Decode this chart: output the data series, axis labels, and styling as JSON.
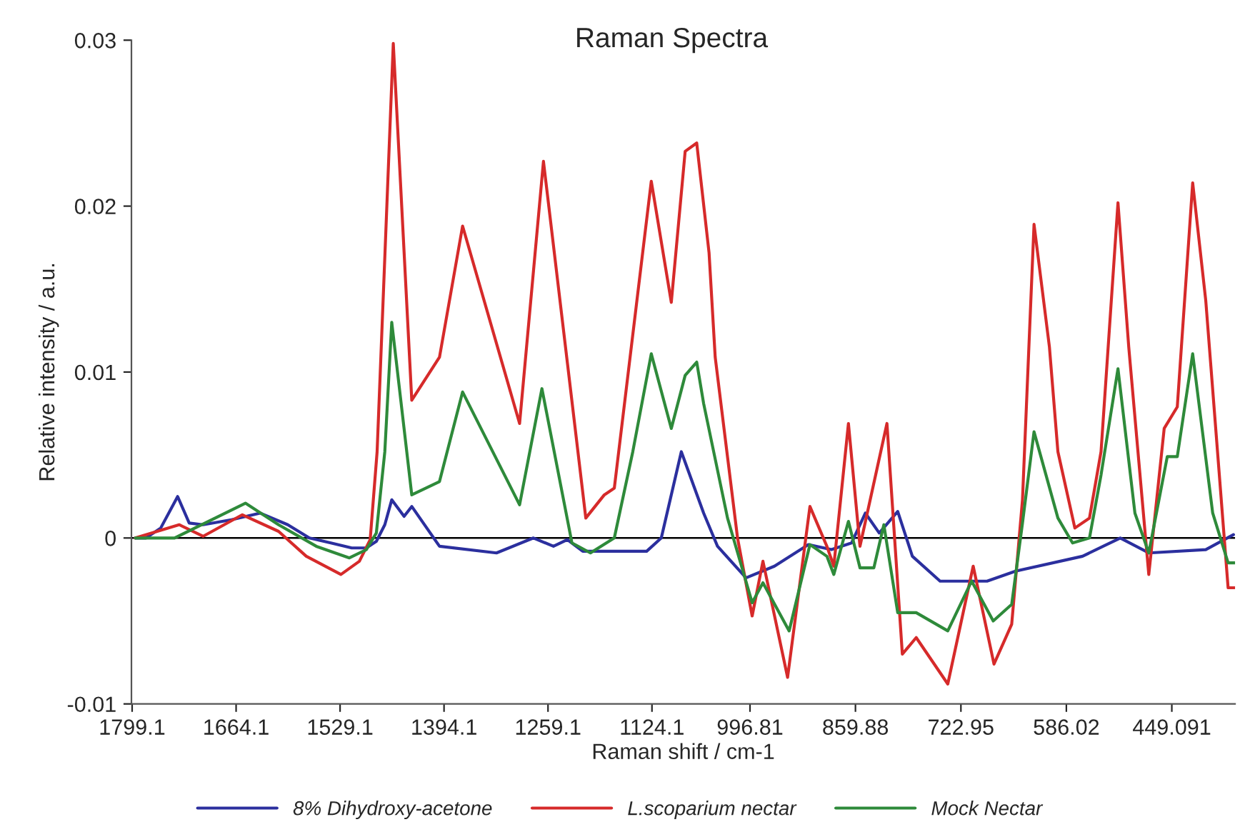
{
  "chart_data": {
    "type": "line",
    "title": "Raman Spectra",
    "xlabel": "Raman shift / cm-1",
    "ylabel": "Relative intensity / a.u.",
    "xlim": [
      1800,
      367
    ],
    "xticks": [
      1799.1,
      1664.1,
      1529.1,
      1394.1,
      1259.1,
      1124.1,
      996.81,
      859.88,
      722.95,
      586.02,
      449.091
    ],
    "ylim": [
      -0.01,
      0.03
    ],
    "yticks": [
      -0.01,
      0,
      0.01,
      0.02,
      0.03
    ],
    "grid": false,
    "legend": "bottom",
    "marker": "none",
    "line_style": "solid",
    "ref_lines": [
      {
        "axis": "y",
        "value": 0,
        "color": "#000000"
      }
    ],
    "series": [
      {
        "name": "8% Dihydroxy-acetone",
        "color": "#2b2f9e",
        "x": [
          1795,
          1781,
          1762,
          1740,
          1725,
          1707,
          1670,
          1633,
          1597,
          1569,
          1541,
          1514,
          1495,
          1482,
          1471,
          1462,
          1446,
          1436,
          1400,
          1326,
          1278,
          1252,
          1234,
          1214,
          1131,
          1112,
          1086,
          1057,
          1039,
          1002,
          965,
          921,
          891,
          865,
          847,
          829,
          805,
          786,
          750,
          689,
          652,
          565,
          516,
          479,
          405,
          369
        ],
        "values": [
          0,
          0,
          0.0006,
          0.0025,
          0.0009,
          0.0008,
          0.0011,
          0.0015,
          0.0008,
          0,
          -0.0003,
          -0.0006,
          -0.0006,
          -0.0002,
          0.0008,
          0.0023,
          0.0013,
          0.0019,
          -0.0005,
          -0.0009,
          0,
          -0.0005,
          -0.0001,
          -0.0008,
          -0.0008,
          0,
          0.0052,
          0.0015,
          -0.0005,
          -0.0024,
          -0.0017,
          -0.0004,
          -0.0007,
          -0.0003,
          0.0015,
          0.0003,
          0.0016,
          -0.0011,
          -0.0026,
          -0.0026,
          -0.002,
          -0.0011,
          0,
          -0.0009,
          -0.0007,
          0.0002
        ]
      },
      {
        "name": "L.scoparium nectar",
        "color": "#d62a2a",
        "x": [
          1795,
          1738,
          1707,
          1656,
          1609,
          1573,
          1528,
          1504,
          1490,
          1481,
          1460,
          1436,
          1400,
          1370,
          1296,
          1265,
          1210,
          1186,
          1173,
          1125,
          1099,
          1081,
          1066,
          1050,
          1042,
          1013,
          994,
          980,
          948,
          919,
          897,
          888,
          869,
          854,
          819,
          799,
          781,
          740,
          707,
          680,
          657,
          643,
          628,
          608,
          597,
          575,
          556,
          541,
          519,
          505,
          479,
          459,
          442,
          422,
          405,
          376,
          367
        ],
        "values": [
          0,
          0.0008,
          0.0001,
          0.0014,
          0.0004,
          -0.0011,
          -0.0022,
          -0.0014,
          -0.0001,
          0.0052,
          0.0298,
          0.0083,
          0.0109,
          0.0188,
          0.0069,
          0.0227,
          0.0012,
          0.0026,
          0.003,
          0.0215,
          0.0142,
          0.0233,
          0.0238,
          0.0172,
          0.0109,
          0,
          -0.0047,
          -0.0014,
          -0.0084,
          0.0019,
          -0.0005,
          -0.0017,
          0.0069,
          -0.0005,
          0.0069,
          -0.007,
          -0.006,
          -0.0088,
          -0.0017,
          -0.0076,
          -0.0052,
          0.0023,
          0.0189,
          0.0115,
          0.0052,
          0.0006,
          0.0012,
          0.0052,
          0.0202,
          0.0115,
          -0.0022,
          0.0066,
          0.0079,
          0.0214,
          0.0143,
          -0.003,
          -0.003
        ]
      },
      {
        "name": "Mock Nectar",
        "color": "#2e8a3a",
        "x": [
          1795,
          1744,
          1652,
          1609,
          1560,
          1517,
          1495,
          1482,
          1471,
          1462,
          1436,
          1400,
          1370,
          1296,
          1267,
          1228,
          1204,
          1173,
          1149,
          1125,
          1099,
          1081,
          1066,
          1057,
          1026,
          994,
          980,
          946,
          919,
          897,
          888,
          869,
          854,
          836,
          823,
          805,
          781,
          740,
          709,
          681,
          657,
          643,
          628,
          597,
          578,
          556,
          541,
          519,
          497,
          479,
          455,
          442,
          422,
          396,
          376,
          367
        ],
        "values": [
          0,
          0,
          0.0021,
          0.0008,
          -0.0005,
          -0.0012,
          -0.0007,
          0.0003,
          0.0052,
          0.013,
          0.0026,
          0.0034,
          0.0088,
          0.002,
          0.009,
          -0.0003,
          -0.0009,
          0,
          0.0052,
          0.0111,
          0.0066,
          0.0098,
          0.0106,
          0.0081,
          0.0012,
          -0.0039,
          -0.0027,
          -0.0056,
          -0.0004,
          -0.0011,
          -0.0022,
          0.001,
          -0.0018,
          -0.0018,
          0.0008,
          -0.0045,
          -0.0045,
          -0.0056,
          -0.0026,
          -0.005,
          -0.004,
          0.0009,
          0.0064,
          0.0012,
          -0.0003,
          0,
          0.0038,
          0.0102,
          0.0015,
          -0.0009,
          0.0049,
          0.0049,
          0.0111,
          0.0015,
          -0.0015,
          -0.0015
        ]
      }
    ]
  }
}
